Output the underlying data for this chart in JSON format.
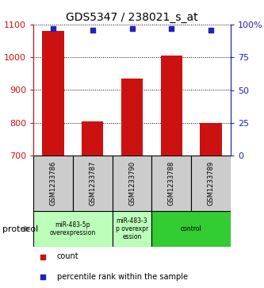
{
  "title": "GDS5347 / 238021_s_at",
  "samples": [
    "GSM1233786",
    "GSM1233787",
    "GSM1233790",
    "GSM1233788",
    "GSM1233789"
  ],
  "counts": [
    1080,
    805,
    935,
    1005,
    800
  ],
  "percentiles": [
    97,
    96,
    97,
    97,
    96
  ],
  "ylim_left": [
    700,
    1100
  ],
  "ylim_right": [
    0,
    100
  ],
  "yticks_left": [
    700,
    800,
    900,
    1000,
    1100
  ],
  "yticks_right": [
    0,
    25,
    50,
    75,
    100
  ],
  "ytick_labels_right": [
    "0",
    "25",
    "50",
    "75",
    "100%"
  ],
  "bar_color": "#cc1111",
  "dot_color": "#2222bb",
  "bar_width": 0.55,
  "groups": [
    {
      "label": "miR-483-5p\noverexpression",
      "samples": [
        0,
        1
      ],
      "color": "#bbffbb"
    },
    {
      "label": "miR-483-3\np overexpr\nession",
      "samples": [
        2
      ],
      "color": "#bbffbb"
    },
    {
      "label": "control",
      "samples": [
        3,
        4
      ],
      "color": "#33cc33"
    }
  ],
  "protocol_label": "protocol",
  "legend_count_label": "count",
  "legend_percentile_label": "percentile rank within the sample",
  "title_fontsize": 10,
  "axis_label_color_left": "#cc1111",
  "axis_label_color_right": "#2222bb",
  "grid_color": "#000000",
  "sample_label_color": "#888888",
  "background_color": "#ffffff"
}
